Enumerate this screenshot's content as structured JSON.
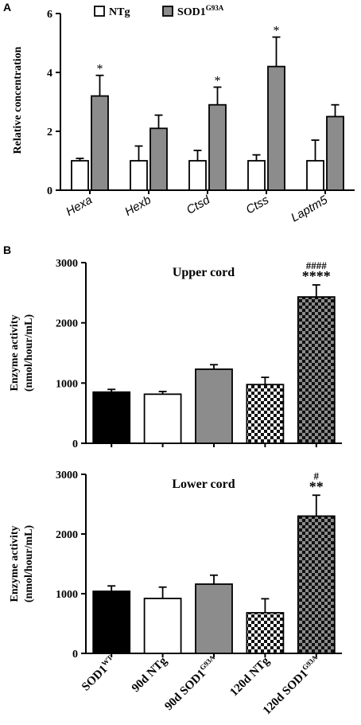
{
  "panels": {
    "a": {
      "letter": "A",
      "chart_data": {
        "type": "bar",
        "ylabel": "Relative concentration",
        "ylim": [
          0,
          6
        ],
        "yticks": [
          "0",
          "2",
          "4",
          "6"
        ],
        "categories": [
          "Hexa",
          "Hexb",
          "Ctsd",
          "Ctss",
          "Laptm5"
        ],
        "legend_position": "top-left",
        "series": [
          {
            "name": "NTg",
            "values": [
              1.0,
              1.0,
              1.0,
              1.0,
              1.0
            ],
            "errors": [
              0.08,
              0.5,
              0.35,
              0.2,
              0.7
            ],
            "color": "#ffffff"
          },
          {
            "name": "SOD1",
            "name_sup": "G93A",
            "values": [
              3.2,
              2.1,
              2.9,
              4.2,
              2.5
            ],
            "errors": [
              0.7,
              0.45,
              0.6,
              1.0,
              0.4
            ],
            "color": "#8c8c8c"
          }
        ],
        "annotations": [
          "*",
          "",
          "*",
          "*",
          ""
        ]
      }
    },
    "b": {
      "letter": "B",
      "charts": [
        {
          "type": "bar",
          "title": "Upper cord",
          "ylabel_line1": "Enzyme activity",
          "ylabel_line2": "(nmol/hour/mL)",
          "ylim": [
            0,
            3000
          ],
          "yticks": [
            "0",
            "1000",
            "2000",
            "3000"
          ],
          "values": [
            850,
            815,
            1230,
            975,
            2430
          ],
          "errors": [
            45,
            45,
            75,
            120,
            200
          ],
          "annotations": [
            {
              "bar": 4,
              "line1": "####",
              "line2": "****"
            }
          ]
        },
        {
          "type": "bar",
          "title": "Lower cord",
          "ylabel_line1": "Enzyme activity",
          "ylabel_line2": "(nmol/hour/mL)",
          "ylim": [
            0,
            3000
          ],
          "yticks": [
            "0",
            "1000",
            "2000",
            "3000"
          ],
          "values": [
            1040,
            920,
            1160,
            680,
            2300
          ],
          "errors": [
            90,
            190,
            150,
            235,
            350
          ],
          "annotations": [
            {
              "bar": 4,
              "line1": "#",
              "line2": "**"
            }
          ]
        }
      ],
      "categories": [
        {
          "main": "SOD1",
          "sup": "WT"
        },
        {
          "main": "90d NTg",
          "sup": ""
        },
        {
          "main": "90d SOD1",
          "sup": "G93A"
        },
        {
          "main": "120d NTg",
          "sup": ""
        },
        {
          "main": "120d SOD1",
          "sup": "G93A"
        }
      ],
      "fills": [
        "#000000",
        "#ffffff",
        "#8c8c8c",
        "checker-white",
        "checker-gray"
      ]
    }
  }
}
